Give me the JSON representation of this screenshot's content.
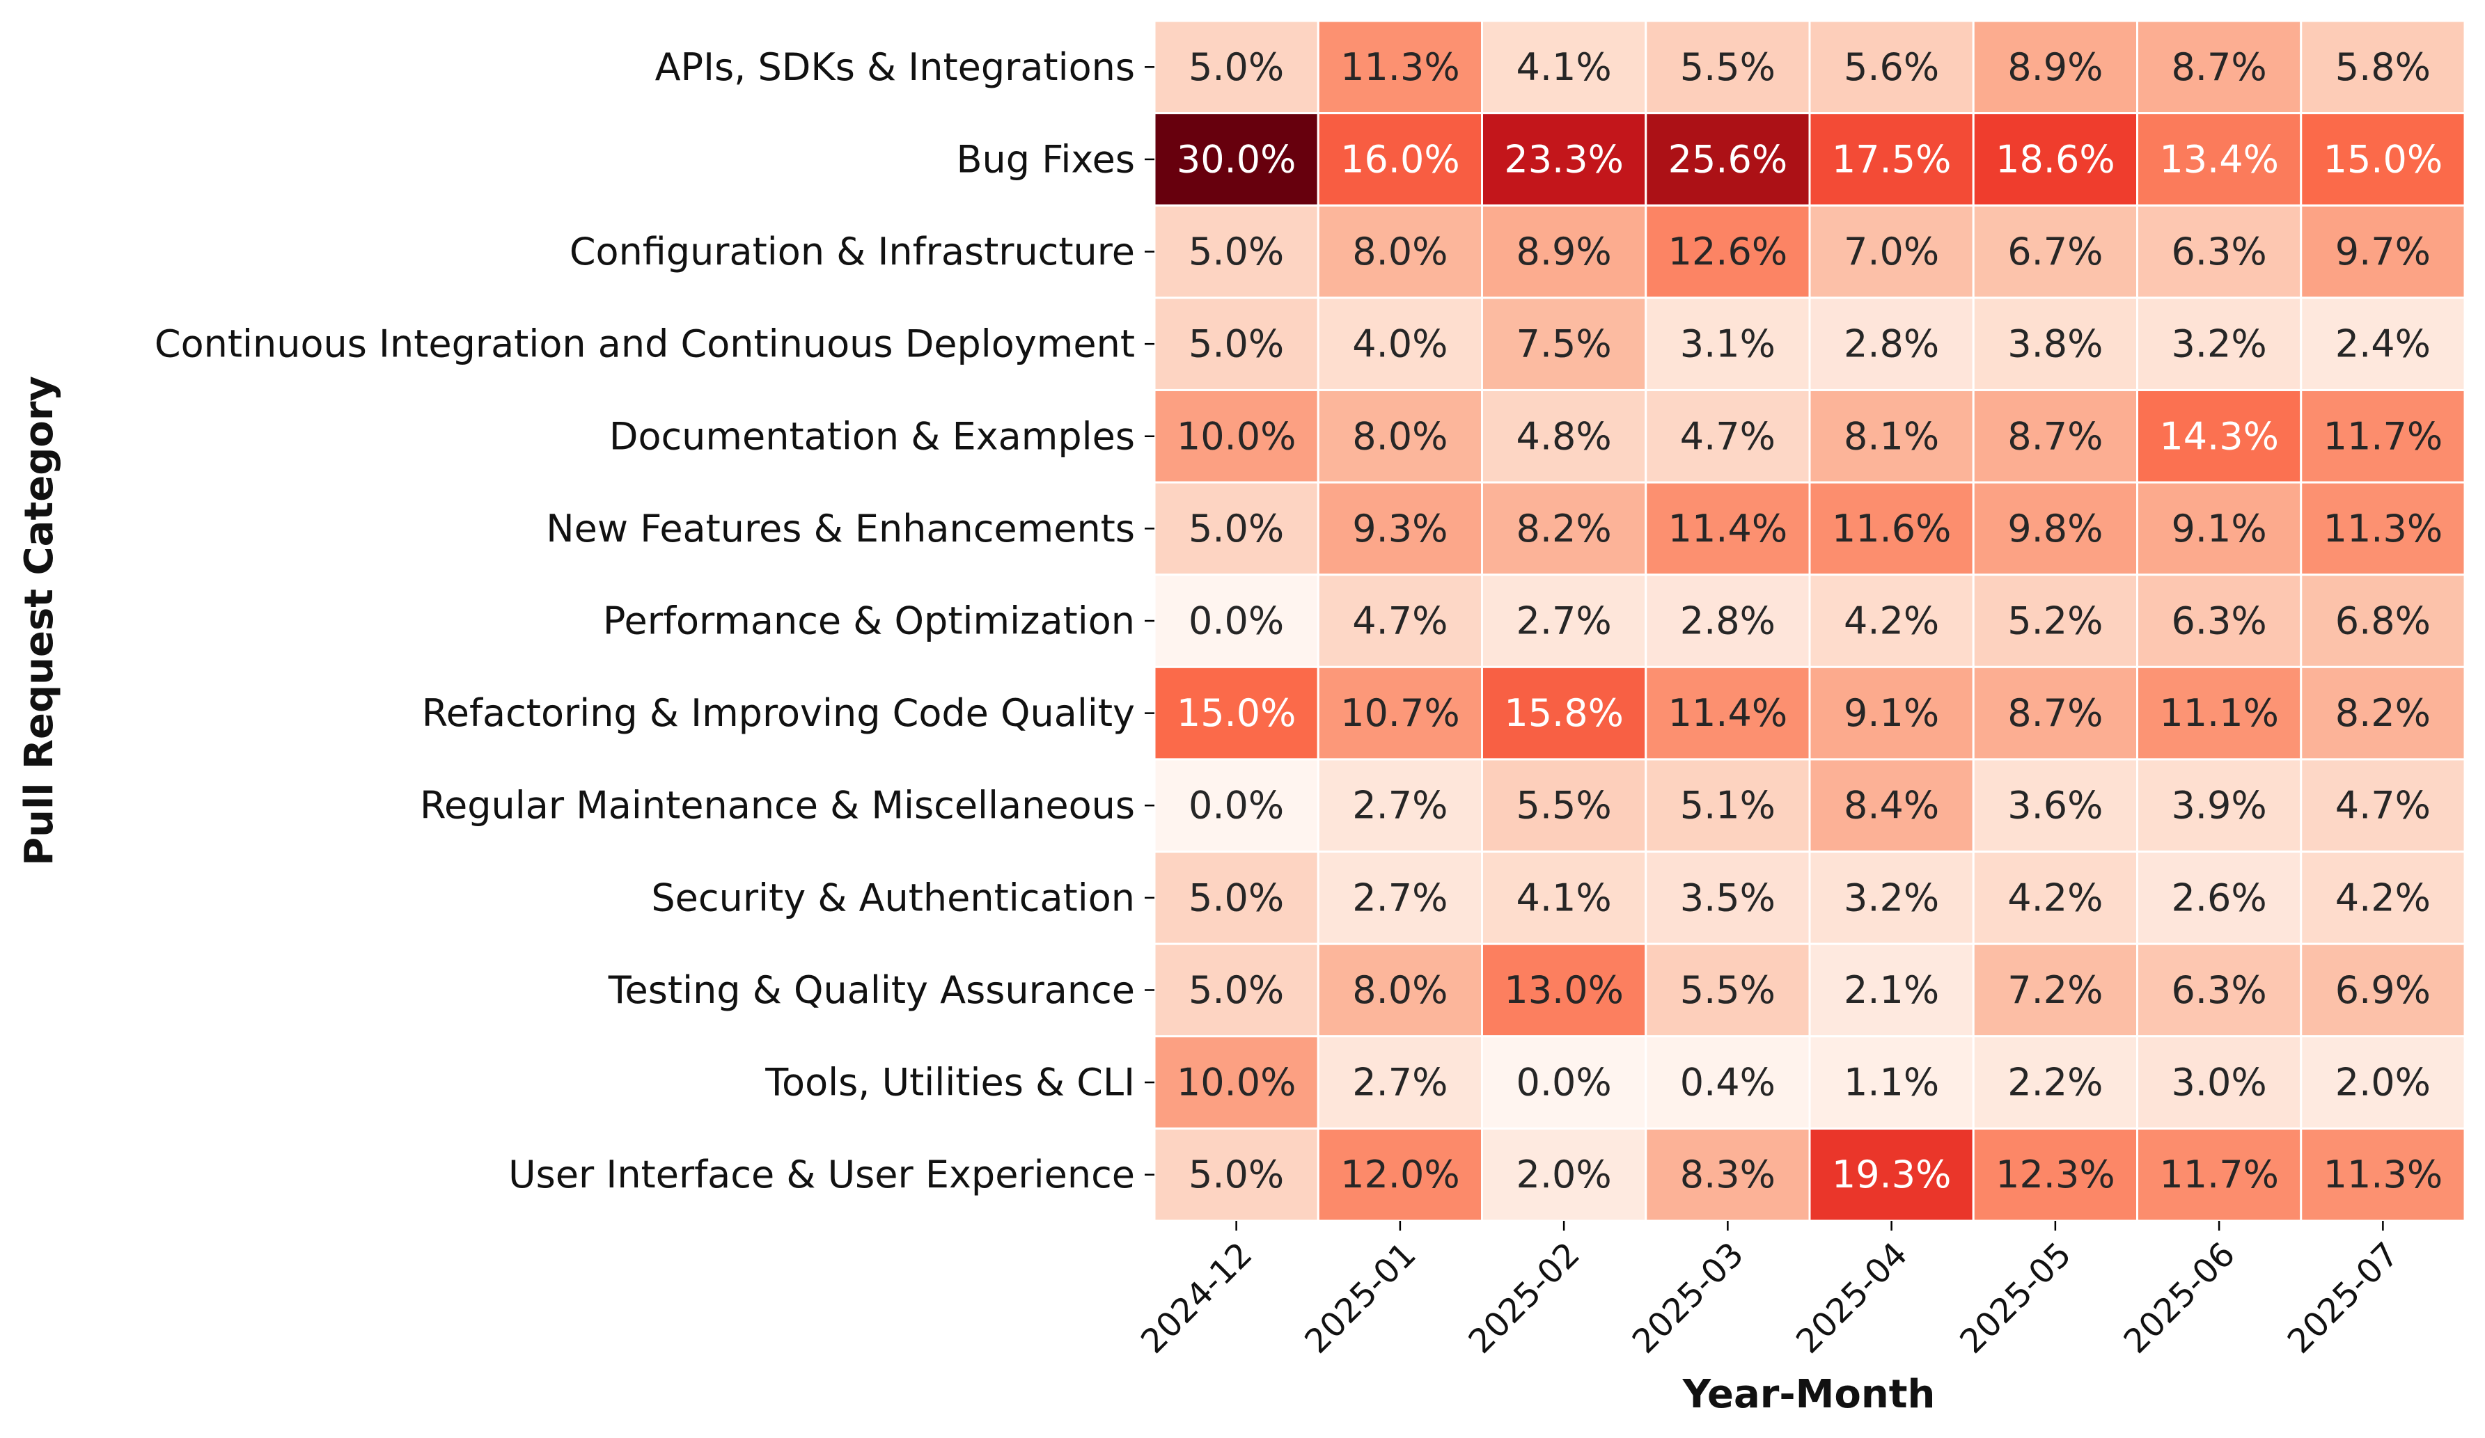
{
  "chart_data": {
    "type": "heatmap",
    "xlabel": "Year-Month",
    "ylabel": "Pull Request Category",
    "x": [
      "2024-12",
      "2025-01",
      "2025-02",
      "2025-03",
      "2025-04",
      "2025-05",
      "2025-06",
      "2025-07"
    ],
    "y": [
      "APIs, SDKs & Integrations",
      "Bug Fixes",
      "Configuration & Infrastructure",
      "Continuous Integration and Continuous Deployment",
      "Documentation & Examples",
      "New Features & Enhancements",
      "Performance & Optimization",
      "Refactoring & Improving Code Quality",
      "Regular Maintenance & Miscellaneous",
      "Security & Authentication",
      "Testing & Quality Assurance",
      "Tools, Utilities & CLI",
      "User Interface & User Experience"
    ],
    "values": [
      [
        5.0,
        11.3,
        4.1,
        5.5,
        5.6,
        8.9,
        8.7,
        5.8
      ],
      [
        30.0,
        16.0,
        23.3,
        25.6,
        17.5,
        18.6,
        13.4,
        15.0
      ],
      [
        5.0,
        8.0,
        8.9,
        12.6,
        7.0,
        6.7,
        6.3,
        9.7
      ],
      [
        5.0,
        4.0,
        7.5,
        3.1,
        2.8,
        3.8,
        3.2,
        2.4
      ],
      [
        10.0,
        8.0,
        4.8,
        4.7,
        8.1,
        8.7,
        14.3,
        11.7
      ],
      [
        5.0,
        9.3,
        8.2,
        11.4,
        11.6,
        9.8,
        9.1,
        11.3
      ],
      [
        0.0,
        4.7,
        2.7,
        2.8,
        4.2,
        5.2,
        6.3,
        6.8
      ],
      [
        15.0,
        10.7,
        15.8,
        11.4,
        9.1,
        8.7,
        11.1,
        8.2
      ],
      [
        0.0,
        2.7,
        5.5,
        5.1,
        8.4,
        3.6,
        3.9,
        4.7
      ],
      [
        5.0,
        2.7,
        4.1,
        3.5,
        3.2,
        4.2,
        2.6,
        4.2
      ],
      [
        5.0,
        8.0,
        13.0,
        5.5,
        2.1,
        7.2,
        6.3,
        6.9
      ],
      [
        10.0,
        2.7,
        0.0,
        0.4,
        1.1,
        2.2,
        3.0,
        2.0
      ],
      [
        5.0,
        12.0,
        2.0,
        8.3,
        19.3,
        12.3,
        11.7,
        11.3
      ]
    ],
    "value_format": "percent, one decimal",
    "color_scale": "Reds",
    "value_range": [
      0,
      30
    ],
    "grid": false,
    "colorbar": false
  }
}
